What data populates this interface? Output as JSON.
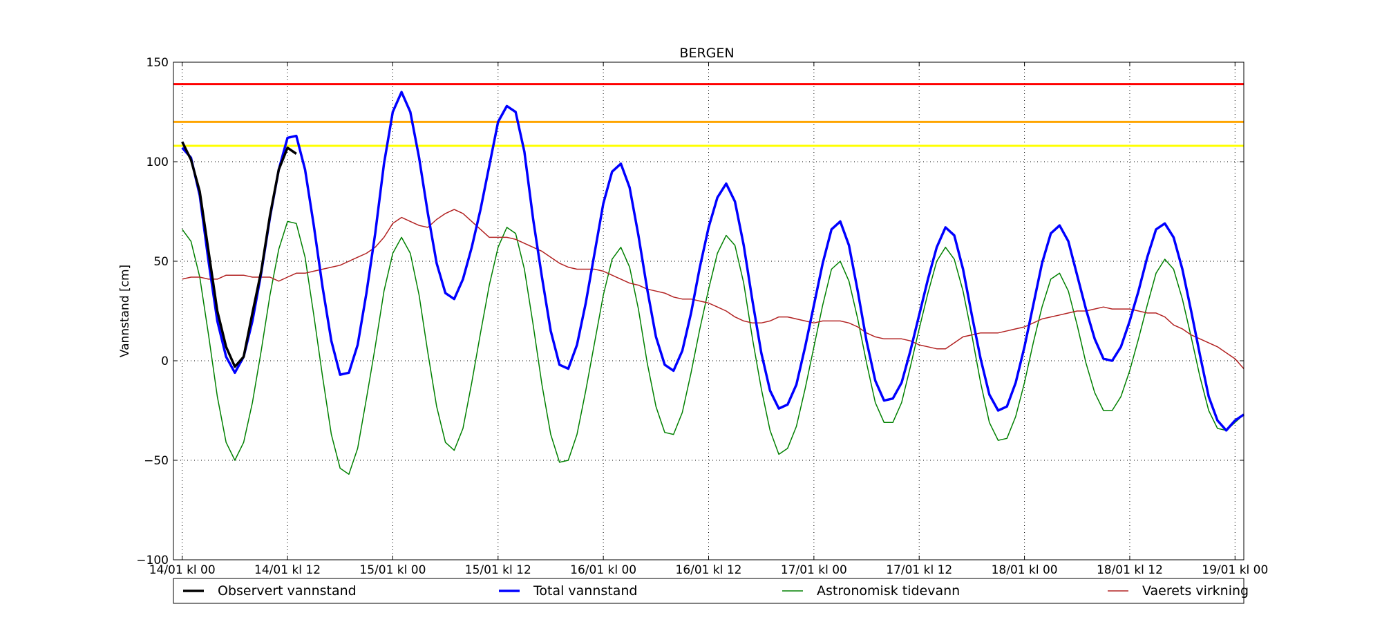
{
  "chart_data": {
    "type": "line",
    "title": "BERGEN",
    "xlabel": "",
    "ylabel": "Vannstand [cm]",
    "ylim": [
      -100,
      150
    ],
    "yticks": [
      -100,
      -50,
      0,
      50,
      100,
      150
    ],
    "ytick_labels": [
      "−100",
      "−50",
      "0",
      "50",
      "100",
      "150"
    ],
    "x_unit": "hours since 14/01 kl 00",
    "xlim": [
      -1,
      121
    ],
    "xticks": [
      0,
      12,
      24,
      36,
      48,
      60,
      72,
      84,
      96,
      108,
      120
    ],
    "xtick_labels": [
      "14/01 kl 00",
      "14/01 kl 12",
      "15/01 kl 00",
      "15/01 kl 12",
      "16/01 kl 00",
      "16/01 kl 12",
      "17/01 kl 00",
      "17/01 kl 12",
      "18/01 kl 00",
      "18/01 kl 12",
      "19/01 kl 00"
    ],
    "grid": true,
    "legend_position": "bottom",
    "threshold_lines": [
      {
        "value": 139,
        "color": "#ff0000"
      },
      {
        "value": 120,
        "color": "#ffa500"
      },
      {
        "value": 108,
        "color": "#ffff00"
      }
    ],
    "series": [
      {
        "name": "Observert vannstand",
        "color": "#000000",
        "width": 3.5,
        "x": [
          0,
          1,
          2,
          3,
          4,
          5,
          6,
          7,
          8,
          9,
          10,
          11,
          12,
          13
        ],
        "y": [
          110,
          101,
          85,
          55,
          25,
          7,
          -3,
          2,
          24,
          45,
          73,
          96,
          107,
          104
        ]
      },
      {
        "name": "Total vannstand",
        "color": "#0000ff",
        "width": 3.5,
        "x": [
          0,
          1,
          2,
          3,
          4,
          5,
          6,
          7,
          8,
          9,
          10,
          11,
          12,
          13,
          14,
          15,
          16,
          17,
          18,
          19,
          20,
          21,
          22,
          23,
          24,
          25,
          26,
          27,
          28,
          29,
          30,
          31,
          32,
          33,
          34,
          35,
          36,
          37,
          38,
          39,
          40,
          41,
          42,
          43,
          44,
          45,
          46,
          47,
          48,
          49,
          50,
          51,
          52,
          53,
          54,
          55,
          56,
          57,
          58,
          59,
          60,
          61,
          62,
          63,
          64,
          65,
          66,
          67,
          68,
          69,
          70,
          71,
          72,
          73,
          74,
          75,
          76,
          77,
          78,
          79,
          80,
          81,
          82,
          83,
          84,
          85,
          86,
          87,
          88,
          89,
          90,
          91,
          92,
          93,
          94,
          95,
          96,
          97,
          98,
          99,
          100,
          101,
          102,
          103,
          104,
          105,
          106,
          107,
          108,
          109,
          110,
          111,
          112,
          113,
          114,
          115,
          116,
          117,
          118,
          119,
          120,
          121
        ],
        "y": [
          107,
          102,
          83,
          50,
          20,
          2,
          -6,
          2,
          20,
          44,
          72,
          96,
          112,
          113,
          96,
          68,
          37,
          10,
          -7,
          -6,
          8,
          34,
          64,
          99,
          125,
          135,
          125,
          102,
          74,
          49,
          34,
          31,
          41,
          57,
          76,
          98,
          120,
          128,
          125,
          105,
          71,
          42,
          15,
          -2,
          -4,
          8,
          29,
          54,
          79,
          95,
          99,
          87,
          63,
          36,
          12,
          -2,
          -5,
          5,
          24,
          47,
          67,
          82,
          89,
          80,
          58,
          30,
          4,
          -15,
          -24,
          -22,
          -12,
          7,
          28,
          49,
          66,
          70,
          58,
          35,
          10,
          -10,
          -20,
          -19,
          -11,
          5,
          23,
          41,
          57,
          67,
          63,
          46,
          23,
          1,
          -17,
          -25,
          -23,
          -11,
          7,
          28,
          49,
          64,
          68,
          60,
          43,
          26,
          11,
          1,
          0,
          7,
          20,
          35,
          52,
          66,
          69,
          62,
          46,
          25,
          3,
          -18,
          -30,
          -35,
          -30,
          -27
        ]
      },
      {
        "name": "Astronomisk tidevann",
        "color": "#008000",
        "width": 1.5,
        "x": [
          0,
          1,
          2,
          3,
          4,
          5,
          6,
          7,
          8,
          9,
          10,
          11,
          12,
          13,
          14,
          15,
          16,
          17,
          18,
          19,
          20,
          21,
          22,
          23,
          24,
          25,
          26,
          27,
          28,
          29,
          30,
          31,
          32,
          33,
          34,
          35,
          36,
          37,
          38,
          39,
          40,
          41,
          42,
          43,
          44,
          45,
          46,
          47,
          48,
          49,
          50,
          51,
          52,
          53,
          54,
          55,
          56,
          57,
          58,
          59,
          60,
          61,
          62,
          63,
          64,
          65,
          66,
          67,
          68,
          69,
          70,
          71,
          72,
          73,
          74,
          75,
          76,
          77,
          78,
          79,
          80,
          81,
          82,
          83,
          84,
          85,
          86,
          87,
          88,
          89,
          90,
          91,
          92,
          93,
          94,
          95,
          96,
          97,
          98,
          99,
          100,
          101,
          102,
          103,
          104,
          105,
          106,
          107,
          108,
          109,
          110,
          111,
          112,
          113,
          114,
          115,
          116,
          117,
          118,
          119,
          120,
          121
        ],
        "y": [
          66,
          60,
          42,
          13,
          -18,
          -41,
          -50,
          -41,
          -21,
          5,
          33,
          56,
          70,
          69,
          52,
          23,
          -8,
          -37,
          -54,
          -57,
          -44,
          -19,
          7,
          35,
          54,
          62,
          54,
          33,
          4,
          -23,
          -41,
          -45,
          -34,
          -11,
          14,
          38,
          57,
          67,
          64,
          46,
          18,
          -12,
          -37,
          -51,
          -50,
          -37,
          -15,
          9,
          33,
          51,
          57,
          47,
          26,
          -1,
          -23,
          -36,
          -37,
          -26,
          -6,
          16,
          36,
          54,
          63,
          58,
          39,
          11,
          -14,
          -35,
          -47,
          -44,
          -33,
          -14,
          7,
          28,
          46,
          50,
          40,
          21,
          -1,
          -21,
          -31,
          -31,
          -21,
          -3,
          16,
          34,
          50,
          57,
          51,
          35,
          13,
          -11,
          -31,
          -40,
          -39,
          -28,
          -11,
          9,
          27,
          41,
          44,
          35,
          18,
          -1,
          -16,
          -25,
          -25,
          -18,
          -5,
          11,
          28,
          44,
          51,
          46,
          31,
          12,
          -8,
          -25,
          -34,
          -35,
          -31,
          -27
        ]
      },
      {
        "name": "Vaerets virkning",
        "color": "#b22222",
        "width": 1.5,
        "x": [
          0,
          1,
          2,
          3,
          4,
          5,
          6,
          7,
          8,
          9,
          10,
          11,
          12,
          13,
          14,
          15,
          16,
          17,
          18,
          19,
          20,
          21,
          22,
          23,
          24,
          25,
          26,
          27,
          28,
          29,
          30,
          31,
          32,
          33,
          34,
          35,
          36,
          37,
          38,
          39,
          40,
          41,
          42,
          43,
          44,
          45,
          46,
          47,
          48,
          49,
          50,
          51,
          52,
          53,
          54,
          55,
          56,
          57,
          58,
          59,
          60,
          61,
          62,
          63,
          64,
          65,
          66,
          67,
          68,
          69,
          70,
          71,
          72,
          73,
          74,
          75,
          76,
          77,
          78,
          79,
          80,
          81,
          82,
          83,
          84,
          85,
          86,
          87,
          88,
          89,
          90,
          91,
          92,
          93,
          94,
          95,
          96,
          97,
          98,
          99,
          100,
          101,
          102,
          103,
          104,
          105,
          106,
          107,
          108,
          109,
          110,
          111,
          112,
          113,
          114,
          115,
          116,
          117,
          118,
          119,
          120,
          121
        ],
        "y": [
          41,
          42,
          42,
          41,
          41,
          43,
          43,
          43,
          42,
          42,
          42,
          40,
          42,
          44,
          44,
          45,
          46,
          47,
          48,
          50,
          52,
          54,
          57,
          62,
          69,
          72,
          70,
          68,
          67,
          71,
          74,
          76,
          74,
          70,
          66,
          62,
          62,
          62,
          61,
          59,
          57,
          55,
          52,
          49,
          47,
          46,
          46,
          46,
          45,
          43,
          41,
          39,
          38,
          36,
          35,
          34,
          32,
          31,
          31,
          30,
          29,
          27,
          25,
          22,
          20,
          19,
          19,
          20,
          22,
          22,
          21,
          20,
          19,
          20,
          20,
          20,
          19,
          17,
          14,
          12,
          11,
          11,
          11,
          10,
          8,
          7,
          6,
          6,
          9,
          12,
          13,
          14,
          14,
          14,
          15,
          16,
          17,
          19,
          21,
          22,
          23,
          24,
          25,
          25,
          26,
          27,
          26,
          26,
          26,
          25,
          24,
          24,
          22,
          18,
          16,
          13,
          11,
          9,
          7,
          4,
          1,
          -4
        ]
      }
    ]
  }
}
